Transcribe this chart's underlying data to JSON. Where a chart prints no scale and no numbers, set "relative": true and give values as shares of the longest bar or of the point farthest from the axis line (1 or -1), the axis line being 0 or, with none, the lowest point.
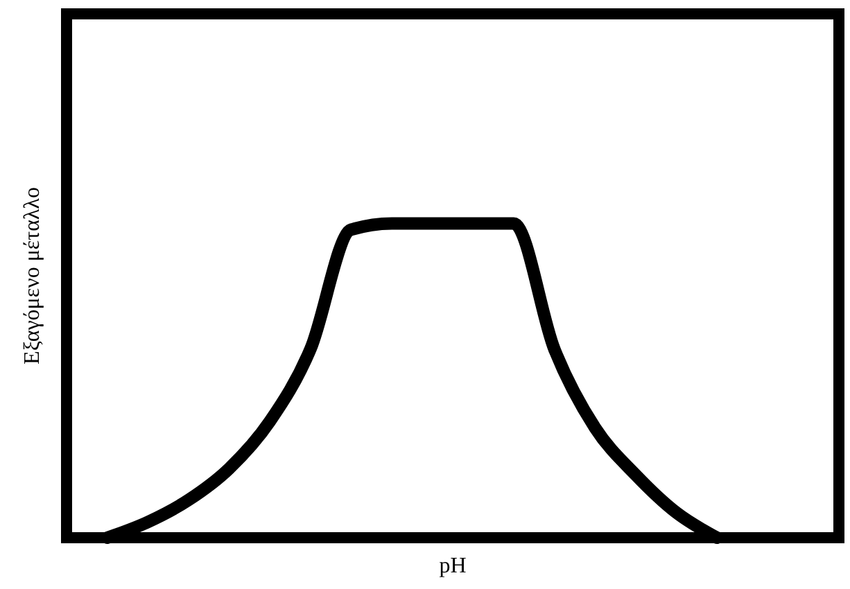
{
  "chart_data": {
    "type": "line",
    "relative": true,
    "xlabel": "pH",
    "ylabel": "Εξαγόμενο μέταλλο",
    "categories": [
      null,
      null,
      null,
      null,
      null,
      null,
      null,
      null,
      null,
      null,
      null,
      null,
      null,
      null,
      null,
      null,
      null,
      null,
      null,
      null
    ],
    "series": [
      {
        "color": "#000000",
        "values": [
          null,
          0,
          0.05,
          0.12,
          0.22,
          0.37,
          0.6,
          0.98,
          1,
          1,
          1,
          1,
          0.6,
          0.35,
          0.2,
          0.08,
          0,
          null,
          null,
          null
        ]
      }
    ],
    "line_style": "solid"
  }
}
